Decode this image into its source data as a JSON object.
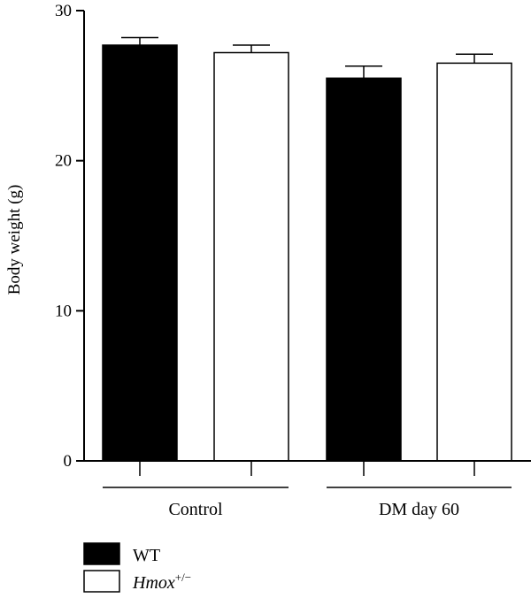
{
  "chart_data": {
    "type": "bar",
    "ylabel": "Body weight (g)",
    "ylim": [
      0,
      30
    ],
    "yticks": [
      "0",
      "10",
      "20",
      "30"
    ],
    "grid": false,
    "legend_position": "bottom-left",
    "groups": [
      "Control",
      "DM day 60"
    ],
    "series": [
      {
        "name": "WT",
        "fill": "#000000",
        "values": [
          27.7,
          25.5
        ],
        "errors": [
          0.5,
          0.8
        ]
      },
      {
        "name": "Hmox",
        "name_suffix": "+/−",
        "fill": "#ffffff",
        "values": [
          27.2,
          26.5
        ],
        "errors": [
          0.5,
          0.6
        ]
      }
    ]
  }
}
